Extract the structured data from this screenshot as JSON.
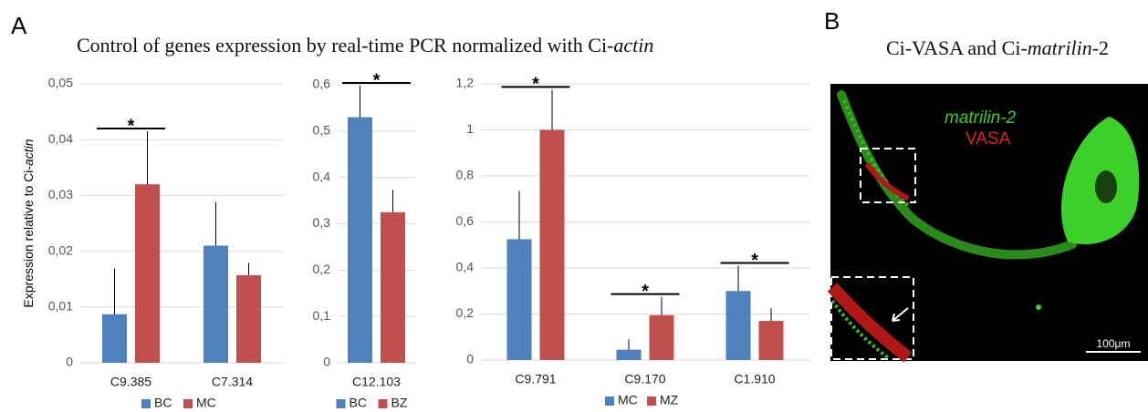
{
  "figure": {
    "panel_label": "A",
    "title": [
      "Control of genes expression by real-time PCR normalized with Ci-",
      "actin"
    ]
  },
  "panel_b": {
    "label": "B",
    "title": [
      "Ci-VASA and Ci-",
      "matrilin",
      "-2"
    ],
    "legend": [
      "matrilin-2",
      "VASA"
    ],
    "scale_bar": "100μm"
  },
  "chart_data": [
    {
      "type": "bar",
      "ylabel": [
        "Expression relative to Ci-",
        "actin"
      ],
      "categories": [
        "C9.385",
        "C7.314"
      ],
      "series": [
        {
          "name": "BC",
          "color": "#4f81bd",
          "values": [
            0.0087,
            0.021
          ],
          "errors": [
            0.0082,
            0.0078
          ]
        },
        {
          "name": "MC",
          "color": "#c0504d",
          "values": [
            0.032,
            0.0157
          ],
          "errors": [
            0.0095,
            0.0022
          ]
        }
      ],
      "annotations": [
        "*",
        null
      ],
      "ylim": [
        0,
        0.05
      ],
      "yticks": [
        0,
        {
          "value": 0.01,
          "label": "0,01"
        },
        {
          "value": 0.02,
          "label": "0,02"
        },
        {
          "value": 0.03,
          "label": "0,03"
        },
        {
          "value": 0.04,
          "label": "0,04"
        },
        {
          "value": 0.05,
          "label": "0,05"
        }
      ],
      "grid": true
    },
    {
      "type": "bar",
      "categories": [
        "C12.103"
      ],
      "series": [
        {
          "name": "BC",
          "color": "#4f81bd",
          "values": [
            0.53
          ],
          "errors": [
            0.068
          ]
        },
        {
          "name": "BZ",
          "color": "#c0504d",
          "values": [
            0.325
          ],
          "errors": [
            0.048
          ]
        }
      ],
      "annotations": [
        "*"
      ],
      "ylim": [
        0,
        0.6
      ],
      "yticks": [
        0,
        {
          "value": 0.1,
          "label": "0,1"
        },
        {
          "value": 0.2,
          "label": "0,2"
        },
        {
          "value": 0.3,
          "label": "0,3"
        },
        {
          "value": 0.4,
          "label": "0,4"
        },
        {
          "value": 0.5,
          "label": "0,5"
        },
        {
          "value": 0.6,
          "label": "0,6"
        }
      ],
      "grid": true
    },
    {
      "type": "bar",
      "categories": [
        "C9.791",
        "C9.170",
        "C1.910"
      ],
      "series": [
        {
          "name": "MC",
          "color": "#4f81bd",
          "values": [
            0.525,
            0.045,
            0.3
          ],
          "errors": [
            0.21,
            0.045,
            0.11
          ]
        },
        {
          "name": "MZ",
          "color": "#c0504d",
          "values": [
            1.0,
            0.195,
            0.17
          ],
          "errors": [
            0.175,
            0.08,
            0.055
          ]
        }
      ],
      "annotations": [
        "*",
        "*",
        "*"
      ],
      "ylim": [
        0,
        1.2
      ],
      "yticks": [
        0,
        {
          "value": 0.2,
          "label": "0,2"
        },
        {
          "value": 0.4,
          "label": "0,4"
        },
        {
          "value": 0.6,
          "label": "0,6"
        },
        {
          "value": 0.8,
          "label": "0,8"
        },
        1,
        {
          "value": 1.2,
          "label": "1,2"
        }
      ],
      "grid": true
    }
  ]
}
